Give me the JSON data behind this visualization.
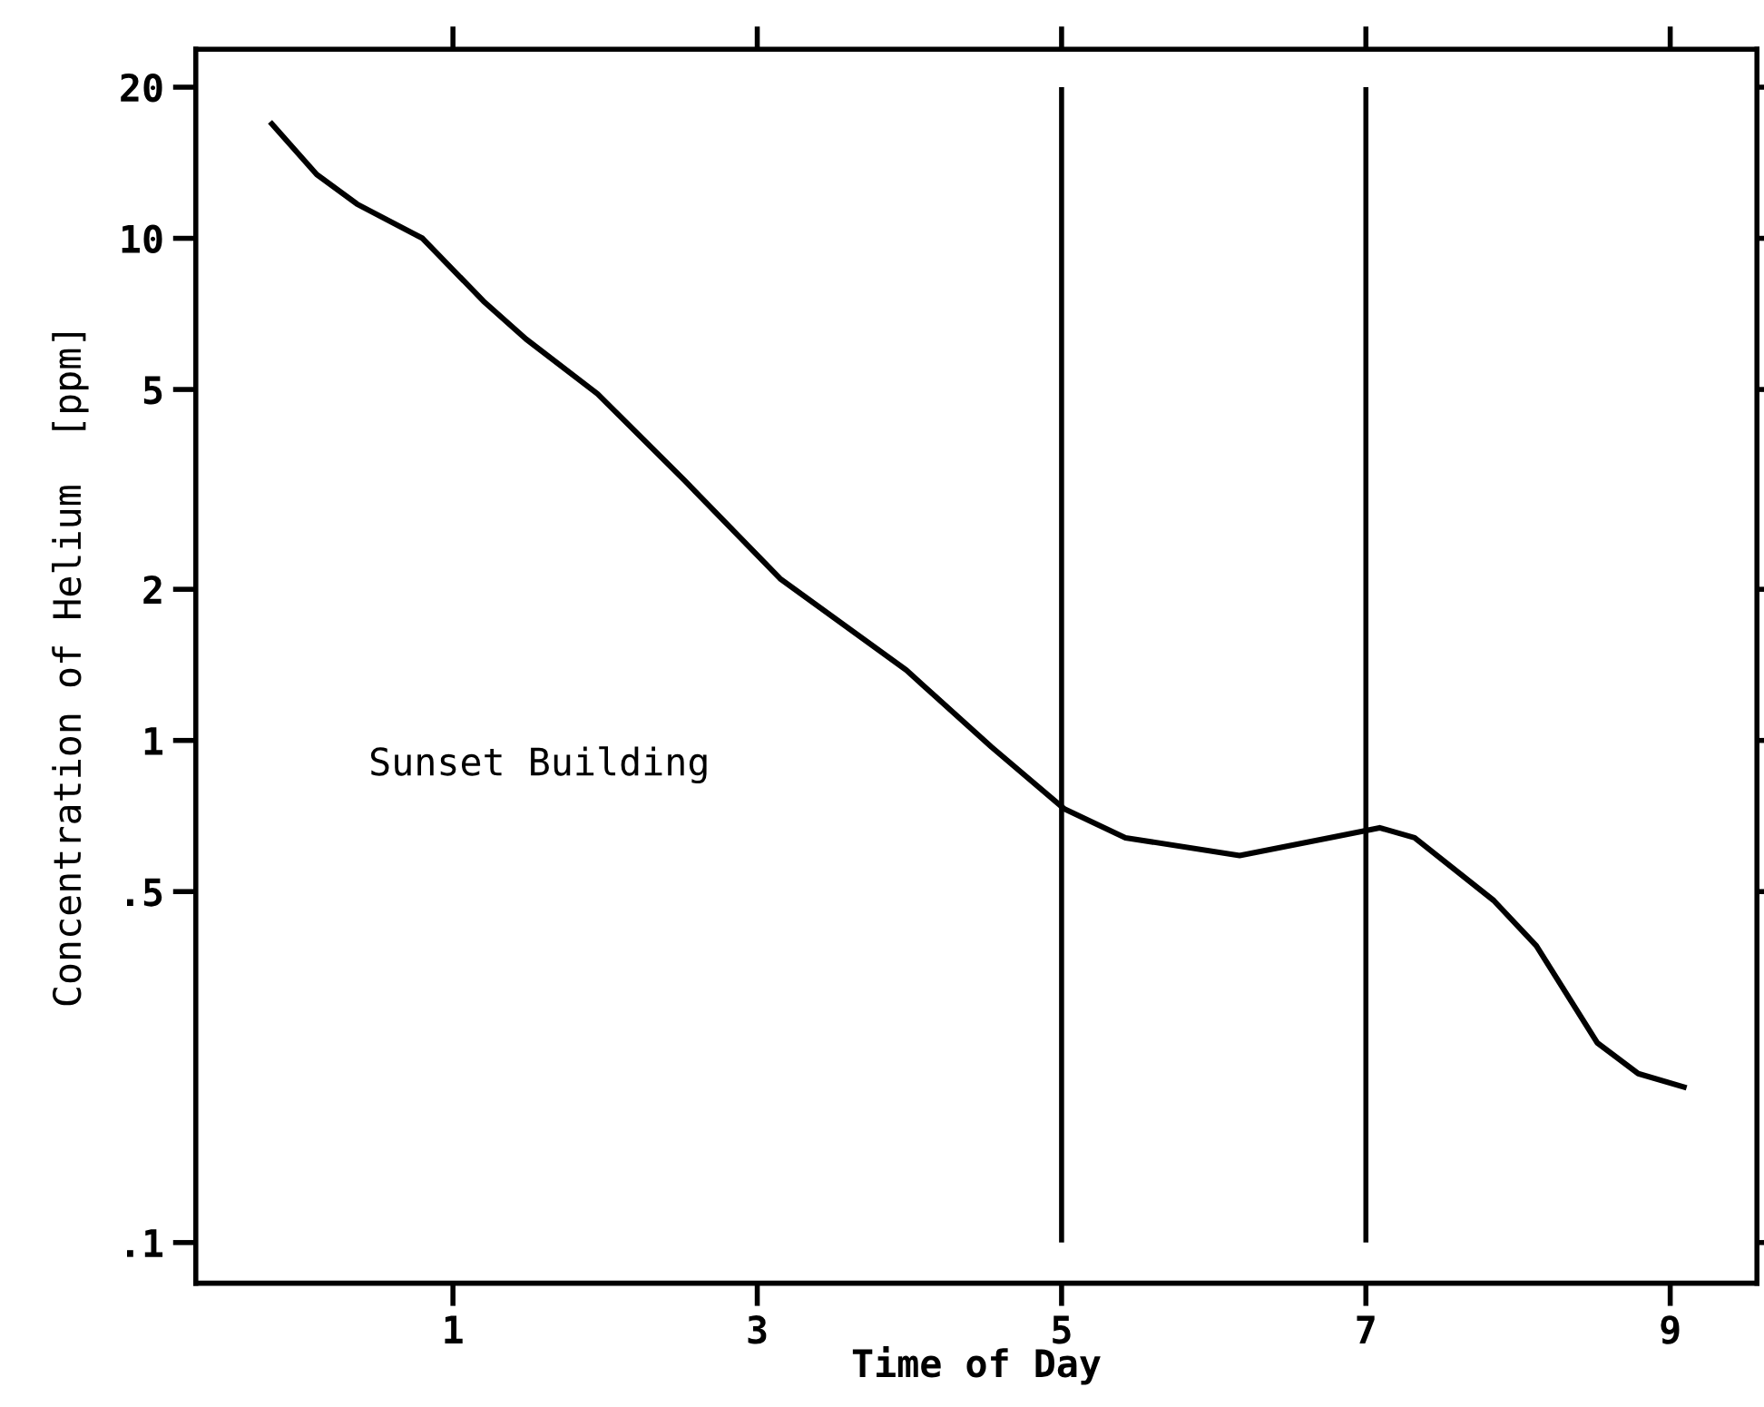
{
  "chart_data": {
    "type": "line",
    "xlabel": "Time of Day",
    "ylabel": "Concentration of Helium  [ppm]",
    "annotations": [
      "Sunset Building"
    ],
    "x": [
      -0.19,
      0.105,
      0.37,
      0.8,
      1.2,
      1.48,
      1.95,
      2.52,
      3.15,
      3.98,
      4.54,
      5.02,
      5.42,
      6.17,
      6.76,
      7.09,
      7.32,
      7.84,
      8.12,
      8.52,
      8.79,
      9.09
    ],
    "values": [
      16.9,
      13.4,
      11.7,
      10.0,
      7.5,
      6.3,
      4.9,
      3.3,
      2.1,
      1.38,
      0.97,
      0.73,
      0.64,
      0.59,
      0.64,
      0.67,
      0.64,
      0.48,
      0.39,
      0.25,
      0.217,
      0.204
    ],
    "color": "#000000",
    "log": "y",
    "marker": "none",
    "line_style": "solid",
    "grid": false,
    "xlim": [
      -0.69,
      9.57
    ],
    "xticks": [
      1,
      3,
      5,
      7,
      9
    ],
    "ylim": [
      0.083,
      23.8
    ],
    "yticks": [
      {
        "value": 0.1,
        "label": ".1"
      },
      {
        "value": 0.5,
        "label": ".5"
      },
      1,
      2,
      5,
      10,
      20
    ],
    "ref_lines": [
      {
        "axis": "x",
        "value": 5,
        "color": "#000000"
      },
      {
        "axis": "x",
        "value": 7,
        "color": "#000000"
      }
    ]
  }
}
